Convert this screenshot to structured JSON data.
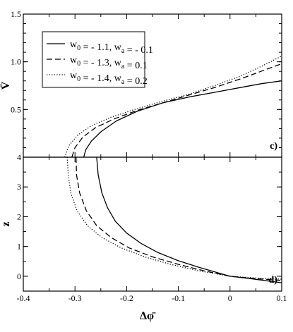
{
  "chart_data": [
    {
      "panel_label": "c)",
      "type": "line",
      "xlabel": "",
      "ylabel": "V̄",
      "xlim": [
        -0.4,
        0.1
      ],
      "ylim": [
        0,
        1.5
      ],
      "xticks": [],
      "yticks": [
        {
          "value": 0.5,
          "label": "0.5"
        },
        {
          "value": 1.0,
          "label": "1.0"
        },
        {
          "value": 1.5,
          "label": "1.5"
        }
      ],
      "legend": {
        "position": "top-left",
        "entries": [
          {
            "w0": "- 1.1",
            "wa": "- 0.1"
          },
          {
            "w0": "- 1.3",
            "wa": "0.1"
          },
          {
            "w0": "- 1.4",
            "wa": "0.2"
          }
        ]
      },
      "series": [
        {
          "name": "w0 = - 1.1, wa = - 0.1",
          "style": "solid",
          "x": [
            -0.283,
            -0.279,
            -0.268,
            -0.249,
            -0.22,
            -0.18,
            -0.13,
            -0.08,
            -0.03,
            0.02,
            0.06,
            0.1
          ],
          "y": [
            0.0,
            0.08,
            0.17,
            0.27,
            0.38,
            0.48,
            0.57,
            0.63,
            0.68,
            0.73,
            0.77,
            0.8
          ]
        },
        {
          "name": "w0 = - 1.3, wa = 0.1",
          "style": "dashed",
          "x": [
            -0.306,
            -0.3,
            -0.285,
            -0.26,
            -0.225,
            -0.18,
            -0.13,
            -0.08,
            -0.03,
            0.02,
            0.06,
            0.1
          ],
          "y": [
            0.0,
            0.1,
            0.21,
            0.31,
            0.4,
            0.49,
            0.57,
            0.65,
            0.73,
            0.82,
            0.9,
            0.98
          ]
        },
        {
          "name": "w0 = - 1.4, wa = 0.2",
          "style": "dotted",
          "x": [
            -0.32,
            -0.312,
            -0.295,
            -0.268,
            -0.23,
            -0.185,
            -0.135,
            -0.08,
            -0.03,
            0.02,
            0.06,
            0.1
          ],
          "y": [
            0.0,
            0.12,
            0.23,
            0.33,
            0.42,
            0.5,
            0.58,
            0.66,
            0.75,
            0.85,
            0.95,
            1.06
          ]
        }
      ]
    },
    {
      "panel_label": "d)",
      "type": "line",
      "xlabel": "Δφ̄",
      "ylabel": "z",
      "xlim": [
        -0.4,
        0.1
      ],
      "ylim": [
        -0.5,
        4
      ],
      "xticks": [
        {
          "value": -0.4,
          "label": "-0.4"
        },
        {
          "value": -0.3,
          "label": "-0.3"
        },
        {
          "value": -0.2,
          "label": "-0.2"
        },
        {
          "value": -0.1,
          "label": "-0.1"
        },
        {
          "value": 0,
          "label": "0"
        },
        {
          "value": 0.1,
          "label": "0.1"
        }
      ],
      "yticks": [
        {
          "value": 0,
          "label": "0"
        },
        {
          "value": 1,
          "label": "1"
        },
        {
          "value": 2,
          "label": "2"
        },
        {
          "value": 3,
          "label": "3"
        },
        {
          "value": 4,
          "label": "4"
        }
      ],
      "series": [
        {
          "name": "w0 = - 1.1, wa = - 0.1",
          "style": "solid",
          "x": [
            -0.258,
            -0.255,
            -0.248,
            -0.237,
            -0.222,
            -0.2,
            -0.172,
            -0.14,
            -0.1,
            -0.06,
            -0.02,
            0.0,
            0.04,
            0.1
          ],
          "y": [
            4.0,
            3.4,
            2.8,
            2.3,
            1.85,
            1.45,
            1.1,
            0.8,
            0.52,
            0.3,
            0.1,
            0.0,
            -0.08,
            -0.22
          ]
        },
        {
          "name": "w0 = - 1.3, wa = 0.1",
          "style": "dashed",
          "x": [
            -0.298,
            -0.297,
            -0.291,
            -0.278,
            -0.258,
            -0.23,
            -0.195,
            -0.15,
            -0.1,
            -0.05,
            0.0,
            0.05,
            0.1
          ],
          "y": [
            4.0,
            3.4,
            2.8,
            2.2,
            1.7,
            1.3,
            0.95,
            0.65,
            0.4,
            0.18,
            0.0,
            -0.08,
            -0.14
          ]
        },
        {
          "name": "w0 = - 1.4, wa = 0.2",
          "style": "dotted",
          "x": [
            -0.315,
            -0.313,
            -0.308,
            -0.296,
            -0.276,
            -0.248,
            -0.21,
            -0.165,
            -0.115,
            -0.06,
            0.0,
            0.05,
            0.1
          ],
          "y": [
            4.0,
            3.4,
            2.8,
            2.2,
            1.7,
            1.3,
            0.95,
            0.65,
            0.4,
            0.18,
            0.0,
            -0.06,
            -0.1
          ]
        }
      ]
    }
  ]
}
